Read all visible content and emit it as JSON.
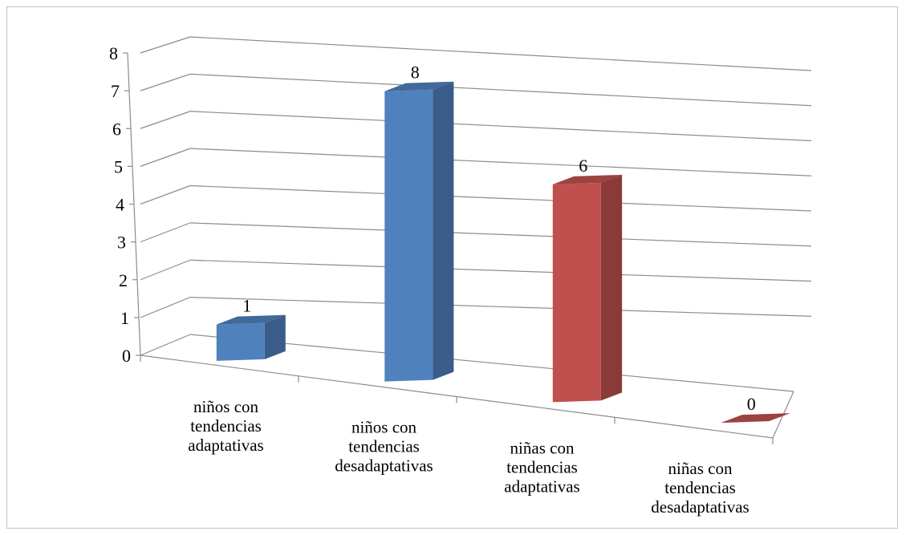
{
  "chart_data": {
    "type": "bar",
    "title": "",
    "xlabel": "",
    "ylabel": "",
    "ylim": [
      0,
      8
    ],
    "yticks": [
      "0",
      "1",
      "2",
      "3",
      "4",
      "5",
      "6",
      "7",
      "8"
    ],
    "grid": true,
    "legend": "none",
    "categories": [
      [
        "niños con",
        "tendencias",
        "adaptativas"
      ],
      [
        "niños con",
        "tendencias",
        "desadaptativas"
      ],
      [
        "niñas con",
        "tendencias",
        "adaptativas"
      ],
      [
        "niñas con",
        "tendencias",
        "desadaptativas"
      ]
    ],
    "values": [
      1,
      8,
      6,
      0
    ],
    "data_labels": [
      "1",
      "8",
      "6",
      "0"
    ],
    "colors": [
      "#4f81bd",
      "#4f81bd",
      "#c0504d",
      "#c0504d"
    ],
    "style": "3d-column"
  }
}
